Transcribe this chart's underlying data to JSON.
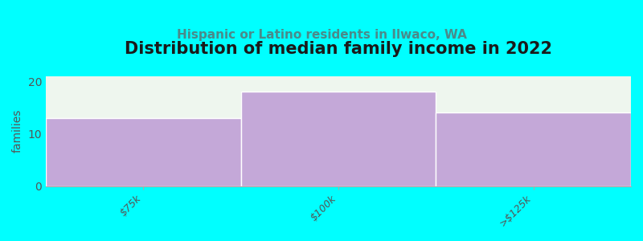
{
  "title": "Distribution of median family income in 2022",
  "subtitle": "Hispanic or Latino residents in Ilwaco, WA",
  "categories": [
    "$75k",
    "$100k",
    ">$125k"
  ],
  "values": [
    13,
    18,
    14
  ],
  "bar_color": "#C4A8D8",
  "background_color": "#00FFFF",
  "plot_bg_color": "#EEF6EE",
  "title_fontsize": 15,
  "subtitle_fontsize": 11,
  "subtitle_color": "#4A8A8A",
  "ylabel": "families",
  "ylim": [
    0,
    21
  ],
  "yticks": [
    0,
    10,
    20
  ],
  "bar_width": 1.0,
  "title_color": "#1A1A1A",
  "tick_label_color": "#555555",
  "tick_label_fontsize": 9
}
